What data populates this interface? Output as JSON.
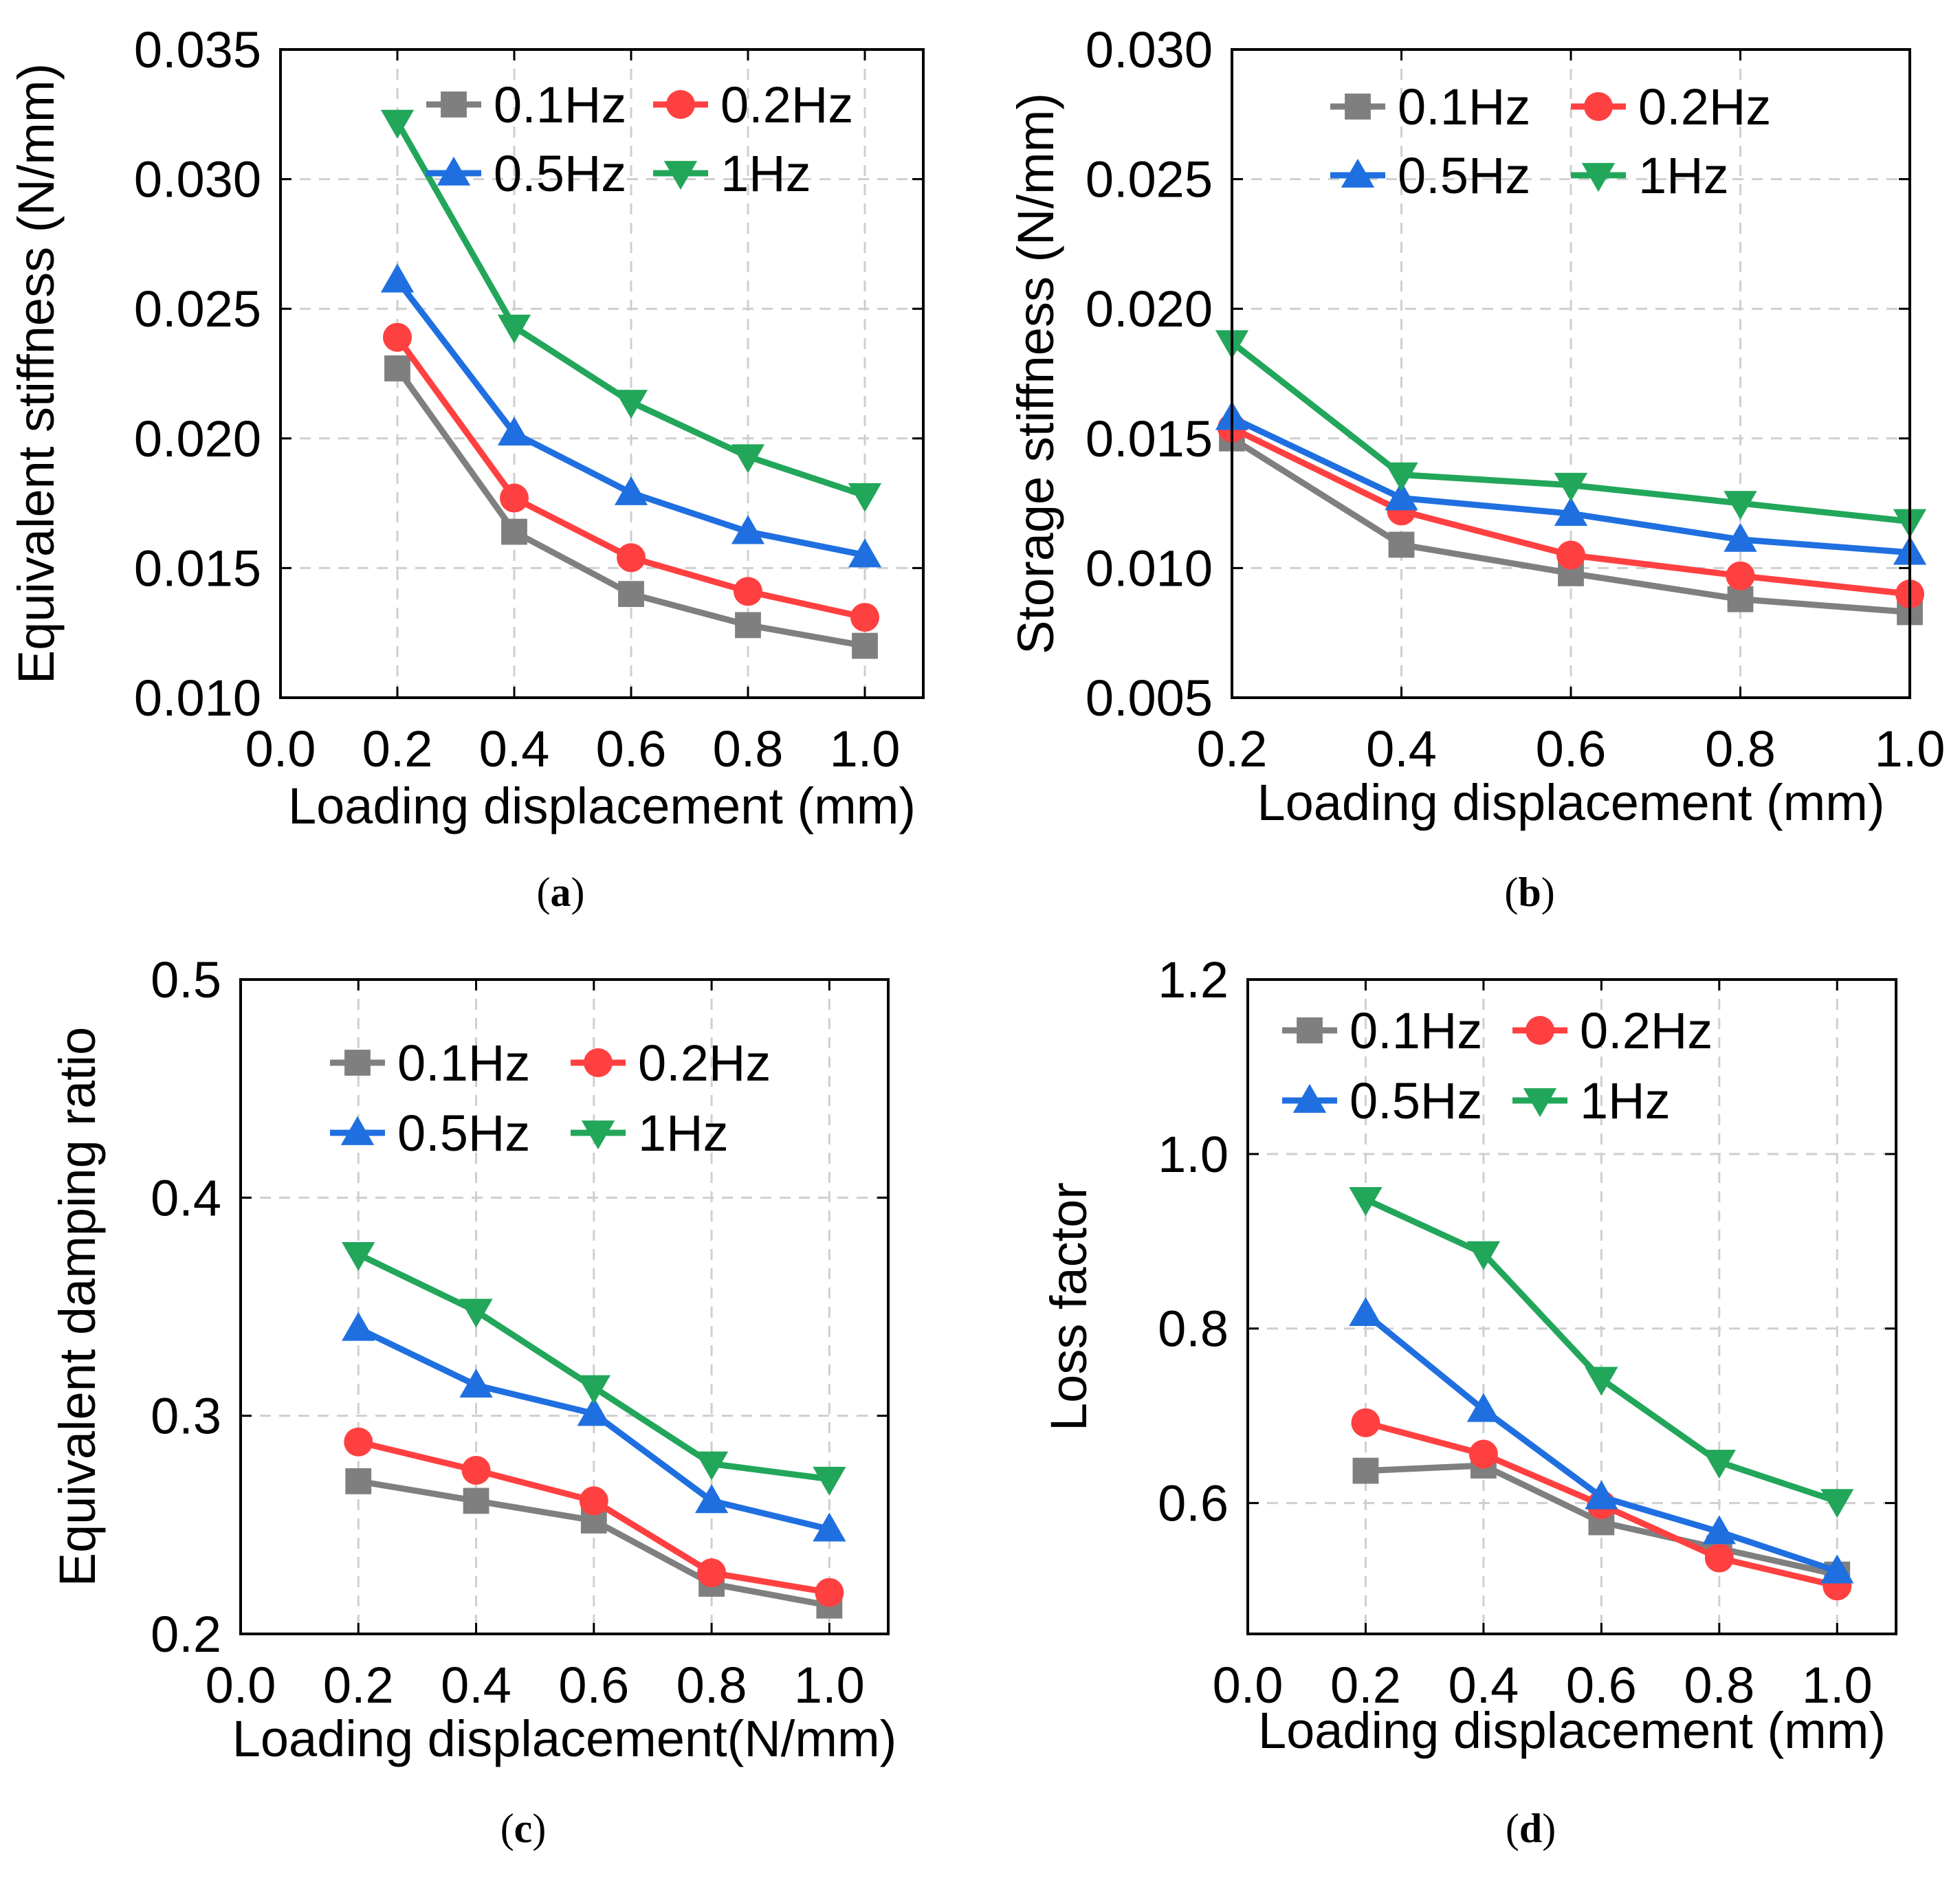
{
  "colors": {
    "0.1Hz": "#7f7f7f",
    "0.2Hz": "#ff4040",
    "0.5Hz": "#1f6fe0",
    "1Hz": "#22a65a",
    "grid": "#cfcfcf"
  },
  "chart_data": [
    {
      "type": "line",
      "caption": "a",
      "caption_open": "(",
      "caption_close": ")",
      "xlabel": "Loading displacement (mm)",
      "ylabel": "Equivalent stiffness (N/mm)",
      "xlim": [
        0.0,
        1.1
      ],
      "ylim": [
        0.01,
        0.035
      ],
      "xticks": [
        "0.0",
        "0.2",
        "0.4",
        "0.6",
        "0.8",
        "1.0"
      ],
      "yticks": [
        "0.010",
        "0.015",
        "0.020",
        "0.025",
        "0.030",
        "0.035"
      ],
      "grid": true,
      "legend_position": "top-right",
      "x": [
        0.2,
        0.4,
        0.6,
        0.8,
        1.0
      ],
      "series": [
        {
          "name": "0.1Hz",
          "marker": "square",
          "values": [
            0.0227,
            0.0164,
            0.014,
            0.0128,
            0.012
          ]
        },
        {
          "name": "0.2Hz",
          "marker": "circle",
          "values": [
            0.0239,
            0.0177,
            0.0154,
            0.0141,
            0.0131
          ]
        },
        {
          "name": "0.5Hz",
          "marker": "triangle-up",
          "values": [
            0.0261,
            0.0202,
            0.0179,
            0.0164,
            0.0155
          ]
        },
        {
          "name": "1Hz",
          "marker": "triangle-down",
          "values": [
            0.0322,
            0.0243,
            0.0214,
            0.0193,
            0.0178
          ]
        }
      ]
    },
    {
      "type": "line",
      "caption": "b",
      "caption_open": "(",
      "caption_close": ")",
      "xlabel": "Loading displacement (mm)",
      "ylabel": "Storage stiffness (N/mm)",
      "xlim": [
        0.2,
        1.0
      ],
      "ylim": [
        0.005,
        0.03
      ],
      "xticks": [
        "0.2",
        "0.4",
        "0.6",
        "0.8",
        "1.0"
      ],
      "yticks": [
        "0.005",
        "0.010",
        "0.015",
        "0.020",
        "0.025",
        "0.030"
      ],
      "grid": true,
      "legend_position": "top",
      "x": [
        0.2,
        0.4,
        0.6,
        0.8,
        1.0
      ],
      "series": [
        {
          "name": "0.1Hz",
          "marker": "square",
          "values": [
            0.015,
            0.0109,
            0.0098,
            0.0088,
            0.0083
          ]
        },
        {
          "name": "0.2Hz",
          "marker": "circle",
          "values": [
            0.0154,
            0.0122,
            0.0105,
            0.0097,
            0.009
          ]
        },
        {
          "name": "0.5Hz",
          "marker": "triangle-up",
          "values": [
            0.0158,
            0.0127,
            0.0121,
            0.0111,
            0.0106
          ]
        },
        {
          "name": "1Hz",
          "marker": "triangle-down",
          "values": [
            0.0187,
            0.0136,
            0.0132,
            0.0125,
            0.0118
          ]
        }
      ]
    },
    {
      "type": "line",
      "caption": "c",
      "caption_open": "(",
      "caption_close": ")",
      "xlabel": "Loading displacement(N/mm)",
      "ylabel": "Equivalent damping ratio",
      "xlim": [
        0.0,
        1.1
      ],
      "ylim": [
        0.2,
        0.5
      ],
      "xticks": [
        "0.0",
        "0.2",
        "0.4",
        "0.6",
        "0.8",
        "1.0"
      ],
      "yticks": [
        "0.2",
        "0.3",
        "0.4",
        "0.5"
      ],
      "grid": true,
      "legend_position": "top",
      "x": [
        0.2,
        0.4,
        0.6,
        0.8,
        1.0
      ],
      "series": [
        {
          "name": "0.1Hz",
          "marker": "square",
          "values": [
            0.27,
            0.261,
            0.252,
            0.223,
            0.213
          ]
        },
        {
          "name": "0.2Hz",
          "marker": "circle",
          "values": [
            0.288,
            0.275,
            0.261,
            0.228,
            0.219
          ]
        },
        {
          "name": "0.5Hz",
          "marker": "triangle-up",
          "values": [
            0.34,
            0.314,
            0.301,
            0.261,
            0.248
          ]
        },
        {
          "name": "1Hz",
          "marker": "triangle-down",
          "values": [
            0.374,
            0.348,
            0.313,
            0.278,
            0.271
          ]
        }
      ]
    },
    {
      "type": "line",
      "caption": "d",
      "caption_open": "(",
      "caption_close": ")",
      "xlabel": "Loading displacement (mm)",
      "ylabel": "Loss factor",
      "xlim": [
        0.0,
        1.1
      ],
      "ylim": [
        0.45,
        1.2
      ],
      "xticks": [
        "0.0",
        "0.2",
        "0.4",
        "0.6",
        "0.8",
        "1.0"
      ],
      "yticks": [
        "0.6",
        "0.8",
        "1.0",
        "1.2"
      ],
      "grid": true,
      "legend_position": "top-left",
      "x": [
        0.2,
        0.4,
        0.6,
        0.8,
        1.0
      ],
      "series": [
        {
          "name": "0.1Hz",
          "marker": "square",
          "values": [
            0.637,
            0.643,
            0.578,
            0.548,
            0.518
          ]
        },
        {
          "name": "0.2Hz",
          "marker": "circle",
          "values": [
            0.692,
            0.656,
            0.598,
            0.537,
            0.505
          ]
        },
        {
          "name": "0.5Hz",
          "marker": "triangle-up",
          "values": [
            0.817,
            0.707,
            0.607,
            0.567,
            0.522
          ]
        },
        {
          "name": "1Hz",
          "marker": "triangle-down",
          "values": [
            0.948,
            0.886,
            0.742,
            0.647,
            0.602
          ]
        }
      ]
    }
  ]
}
